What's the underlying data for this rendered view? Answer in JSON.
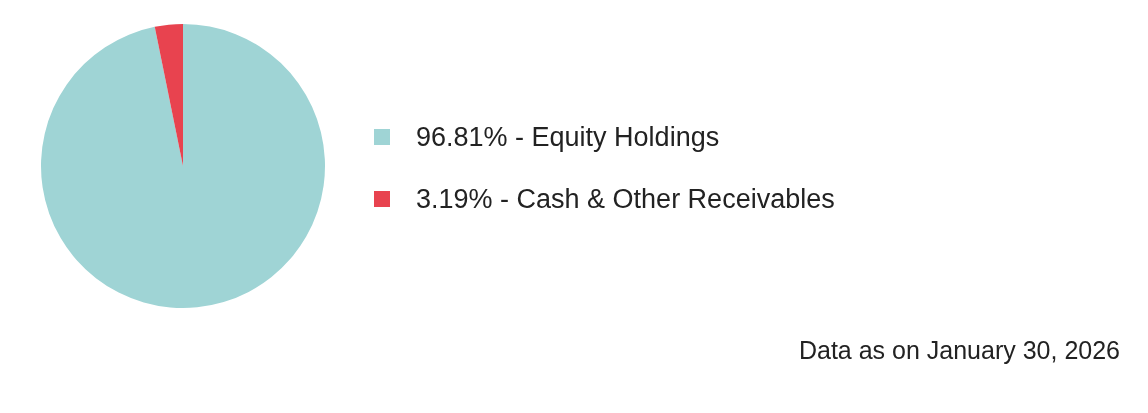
{
  "chart_data": {
    "type": "pie",
    "categories": [
      "96.81% - Equity Holdings",
      "3.19% - Cash & Other Receivables"
    ],
    "values": [
      96.81,
      3.19
    ],
    "colors": [
      "#9fd4d5",
      "#e8434f"
    ],
    "legend": "right",
    "annotations": [
      "Data as on January 30, 2026"
    ]
  }
}
